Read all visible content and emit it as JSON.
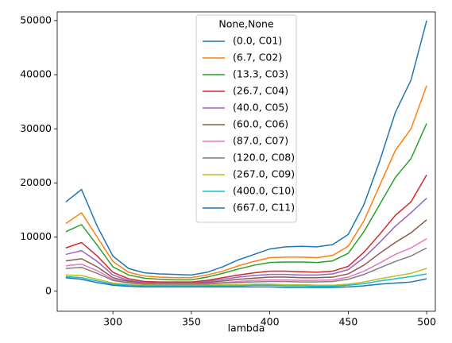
{
  "chart_data": {
    "type": "line",
    "xlabel": "lambda",
    "legend_title": "None,None",
    "legend_loc": "upper center",
    "x": [
      270,
      280,
      290,
      300,
      310,
      320,
      330,
      340,
      350,
      360,
      370,
      380,
      390,
      400,
      410,
      420,
      430,
      440,
      450,
      460,
      470,
      480,
      490,
      500
    ],
    "xlim": [
      264.5,
      505.5
    ],
    "xticks": [
      300,
      350,
      400,
      450,
      500
    ],
    "ylim": [
      -3700,
      51600
    ],
    "yticks": [
      0,
      10000,
      20000,
      30000,
      40000,
      50000
    ],
    "series": [
      {
        "name": "(0.0, C01)",
        "color": "#1f77b4",
        "values": [
          16500,
          18800,
          12000,
          6500,
          4200,
          3400,
          3200,
          3100,
          3000,
          3500,
          4500,
          5800,
          6800,
          7800,
          8200,
          8300,
          8200,
          8600,
          10500,
          16000,
          24000,
          33000,
          39000,
          50000
        ]
      },
      {
        "name": "(6.7, C02)",
        "color": "#ff7f0e",
        "values": [
          12500,
          14500,
          10000,
          5500,
          3500,
          2800,
          2600,
          2500,
          2500,
          3000,
          3700,
          4700,
          5500,
          6200,
          6300,
          6300,
          6200,
          6600,
          8300,
          13000,
          19500,
          26000,
          30000,
          38000
        ]
      },
      {
        "name": "(13.3, C03)",
        "color": "#2ca02c",
        "values": [
          11000,
          12300,
          8500,
          4500,
          3000,
          2400,
          2200,
          2100,
          2100,
          2600,
          3300,
          4100,
          4800,
          5300,
          5400,
          5400,
          5300,
          5600,
          7000,
          11000,
          16000,
          21000,
          24500,
          31000
        ]
      },
      {
        "name": "(26.7, C04)",
        "color": "#d62728",
        "values": [
          8000,
          9000,
          6500,
          3500,
          2300,
          1800,
          1700,
          1700,
          1700,
          2000,
          2500,
          3000,
          3400,
          3700,
          3700,
          3600,
          3500,
          3700,
          4600,
          7200,
          10500,
          14000,
          16500,
          21500
        ]
      },
      {
        "name": "(40.0, C05)",
        "color": "#9467bd",
        "values": [
          6800,
          7500,
          5500,
          3000,
          2000,
          1600,
          1500,
          1500,
          1500,
          1800,
          2200,
          2600,
          2900,
          3100,
          3100,
          3000,
          3000,
          3200,
          4000,
          6200,
          9000,
          12000,
          14500,
          17200
        ]
      },
      {
        "name": "(60.0, C06)",
        "color": "#8c564b",
        "values": [
          5600,
          6000,
          4500,
          2500,
          1800,
          1500,
          1400,
          1400,
          1400,
          1600,
          1900,
          2200,
          2400,
          2600,
          2600,
          2500,
          2500,
          2600,
          3200,
          4800,
          7000,
          9000,
          10800,
          13200
        ]
      },
      {
        "name": "(87.0, C07)",
        "color": "#e377c2",
        "values": [
          4700,
          5000,
          3800,
          2200,
          1600,
          1400,
          1300,
          1300,
          1300,
          1400,
          1600,
          1800,
          2000,
          2100,
          2100,
          2000,
          2000,
          2100,
          2600,
          3700,
          5200,
          6800,
          8000,
          9700
        ]
      },
      {
        "name": "(120.0, C08)",
        "color": "#7f7f7f",
        "values": [
          4200,
          4400,
          3300,
          2000,
          1500,
          1300,
          1200,
          1200,
          1200,
          1300,
          1500,
          1600,
          1700,
          1800,
          1800,
          1700,
          1700,
          1800,
          2200,
          3100,
          4300,
          5500,
          6500,
          8000
        ]
      },
      {
        "name": "(267.0, C09)",
        "color": "#bcbd22",
        "values": [
          3000,
          2900,
          2200,
          1500,
          1200,
          1100,
          1100,
          1100,
          1100,
          1100,
          1200,
          1200,
          1300,
          1300,
          1200,
          1200,
          1100,
          1100,
          1300,
          1700,
          2300,
          2800,
          3300,
          4200
        ]
      },
      {
        "name": "(400.0, C10)",
        "color": "#17becf",
        "values": [
          2700,
          2500,
          1900,
          1300,
          1100,
          1000,
          1000,
          1000,
          1000,
          1000,
          1000,
          1000,
          1100,
          1100,
          1000,
          1000,
          900,
          900,
          1100,
          1400,
          1900,
          2300,
          2700,
          3200
        ]
      },
      {
        "name": "(667.0, C11)",
        "color": "#1f77b4",
        "values": [
          2500,
          2200,
          1600,
          1100,
          900,
          800,
          800,
          800,
          800,
          800,
          800,
          800,
          800,
          800,
          700,
          700,
          700,
          700,
          800,
          1000,
          1300,
          1500,
          1700,
          2300
        ]
      }
    ]
  }
}
